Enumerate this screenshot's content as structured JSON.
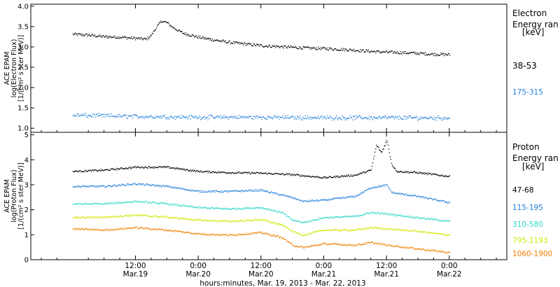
{
  "xlabel": "hours:minutes, Mar. 19, 2013 - Mar. 22, 2013",
  "x_ticks": [
    {
      "t": 12,
      "time": "12:00",
      "date": "Mar.19"
    },
    {
      "t": 24,
      "time": "0:00",
      "date": "Mar.20"
    },
    {
      "t": 36,
      "time": "12:00",
      "date": "Mar.20"
    },
    {
      "t": 48,
      "time": "0:00",
      "date": "Mar.21"
    },
    {
      "t": 60,
      "time": "12:00",
      "date": "Mar.21"
    },
    {
      "t": 72,
      "time": "0:00",
      "date": "Mar.22"
    }
  ],
  "x_range_hours": [
    0,
    72
  ],
  "chart_data": [
    {
      "type": "scatter",
      "panel": "electron",
      "ylabel_lines": [
        "ACE EPAM",
        "log(Electron Flux)",
        "[1/(cm² s ster MeV)]"
      ],
      "ylim": [
        0.9,
        4.05
      ],
      "yticks": [
        "1.0",
        "1.5",
        "2.0",
        "2.5",
        "3.0",
        "3.5",
        "4.0"
      ],
      "legend_title_lines": [
        "Electron",
        "Energy ran",
        "[keV]"
      ],
      "series": [
        {
          "name": "38-53",
          "color": "#000000",
          "x": [
            0,
            3,
            6,
            9,
            12,
            14,
            15,
            16,
            17,
            18,
            19,
            20,
            21,
            24,
            27,
            30,
            33,
            36,
            39,
            42,
            45,
            48,
            51,
            54,
            57,
            60,
            63,
            66,
            69,
            72
          ],
          "y": [
            3.32,
            3.3,
            3.26,
            3.25,
            3.22,
            3.2,
            3.3,
            3.5,
            3.65,
            3.6,
            3.5,
            3.42,
            3.35,
            3.25,
            3.18,
            3.12,
            3.08,
            3.04,
            3.02,
            3.0,
            2.98,
            2.97,
            2.95,
            2.93,
            2.9,
            2.88,
            2.87,
            2.85,
            2.83,
            2.82
          ]
        },
        {
          "name": "175-315",
          "color": "#1f7fd8",
          "x": [
            0,
            12,
            24,
            36,
            48,
            60,
            72
          ],
          "y": [
            1.33,
            1.3,
            1.28,
            1.28,
            1.27,
            1.27,
            1.26
          ]
        }
      ]
    },
    {
      "type": "scatter",
      "panel": "proton",
      "ylabel_lines": [
        "ACE EPAM",
        "log(Proton Flux)",
        "[1/(cm² s ster MeV)]"
      ],
      "ylim": [
        0,
        5.1
      ],
      "yticks": [
        "0",
        "1",
        "2",
        "3",
        "4",
        "5"
      ],
      "legend_title_lines": [
        "Proton",
        "Energy ran",
        "[keV]"
      ],
      "series": [
        {
          "name": "47-68",
          "color": "#000000",
          "x": [
            0,
            6,
            12,
            18,
            24,
            30,
            36,
            42,
            48,
            54,
            57,
            58,
            59,
            60,
            61,
            62,
            66,
            72
          ],
          "y": [
            3.55,
            3.6,
            3.72,
            3.72,
            3.55,
            3.5,
            3.48,
            3.42,
            3.3,
            3.4,
            3.6,
            4.6,
            4.3,
            4.8,
            3.8,
            3.55,
            3.5,
            3.35
          ]
        },
        {
          "name": "115-195",
          "color": "#1f7fd8",
          "x": [
            0,
            6,
            12,
            18,
            24,
            30,
            36,
            40,
            42,
            44,
            48,
            54,
            57,
            60,
            61,
            66,
            72
          ],
          "y": [
            2.95,
            2.95,
            3.05,
            2.95,
            2.75,
            2.75,
            2.8,
            2.6,
            2.5,
            2.35,
            2.4,
            2.55,
            2.9,
            3.0,
            2.7,
            2.55,
            2.3
          ]
        },
        {
          "name": "310-580",
          "color": "#29d6c8",
          "x": [
            0,
            6,
            12,
            18,
            24,
            30,
            36,
            40,
            42,
            44,
            48,
            54,
            57,
            60,
            66,
            72
          ],
          "y": [
            2.25,
            2.25,
            2.35,
            2.25,
            2.1,
            2.05,
            2.1,
            1.9,
            1.6,
            1.5,
            1.7,
            1.75,
            1.9,
            1.85,
            1.7,
            1.55
          ]
        },
        {
          "name": "795-1193",
          "color": "#d2e600",
          "x": [
            0,
            6,
            12,
            18,
            24,
            30,
            36,
            40,
            42,
            44,
            48,
            54,
            57,
            60,
            66,
            72
          ],
          "y": [
            1.7,
            1.72,
            1.8,
            1.72,
            1.6,
            1.55,
            1.62,
            1.4,
            1.15,
            1.0,
            1.2,
            1.2,
            1.3,
            1.25,
            1.15,
            1.0
          ]
        },
        {
          "name": "1060-1900",
          "color": "#f07d00",
          "x": [
            0,
            6,
            12,
            18,
            24,
            30,
            36,
            40,
            42,
            44,
            48,
            54,
            57,
            60,
            66,
            72
          ],
          "y": [
            1.25,
            1.2,
            1.3,
            1.2,
            1.05,
            1.0,
            1.1,
            0.9,
            0.6,
            0.5,
            0.65,
            0.6,
            0.7,
            0.6,
            0.45,
            0.3
          ]
        }
      ]
    }
  ]
}
